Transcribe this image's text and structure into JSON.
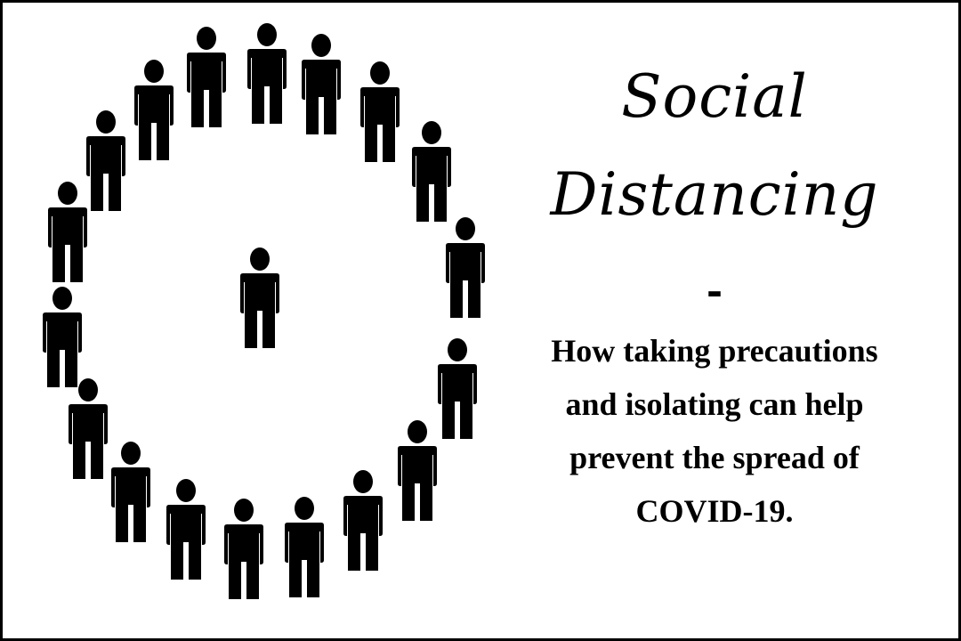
{
  "poster": {
    "title_line_1": "Social",
    "title_line_2": "Distancing",
    "separator": "-",
    "subtitle_lines": [
      "How taking precautions",
      "and isolating can help",
      "prevent the spread of",
      "COVID-19."
    ]
  },
  "icons": {
    "figure": "person-icon"
  },
  "colors": {
    "ink": "#000000",
    "background": "#ffffff"
  }
}
